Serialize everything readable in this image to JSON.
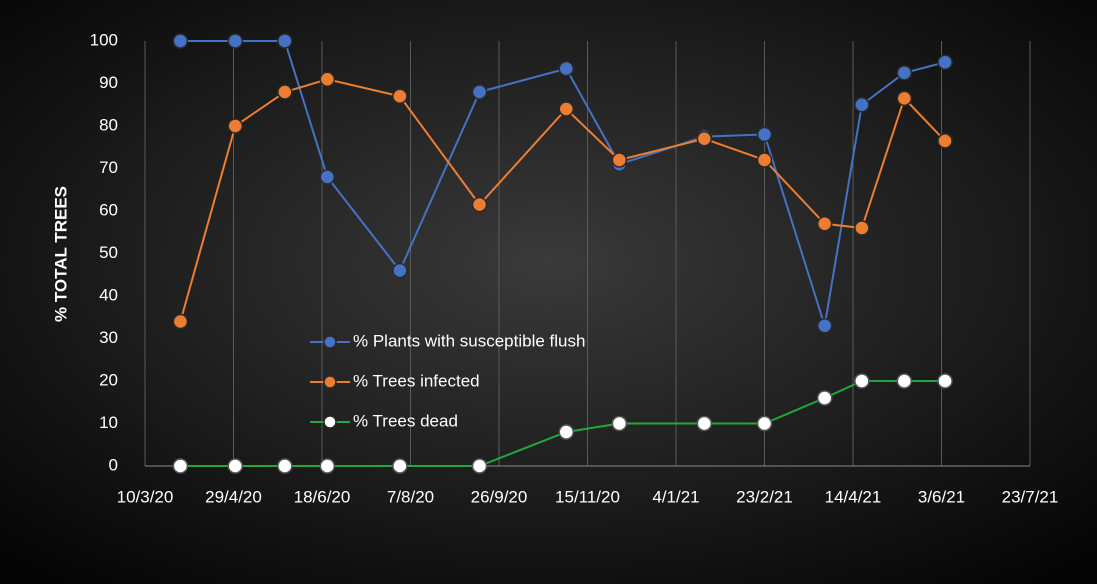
{
  "chart_data": {
    "type": "line",
    "y_label": "% TOTAL TREES",
    "x": [
      "2020-03-30",
      "2020-04-30",
      "2020-05-28",
      "2020-06-21",
      "2020-08-01",
      "2020-09-15",
      "2020-11-03",
      "2020-12-03",
      "2021-01-20",
      "2021-02-23",
      "2021-03-29",
      "2021-04-19",
      "2021-05-13",
      "2021-06-05"
    ],
    "series": [
      {
        "name": "% Plants with susceptible flush",
        "color": "#4472c4",
        "marker_color": "#4472c4",
        "values": [
          100,
          100,
          100,
          68,
          46,
          88,
          93.5,
          71,
          77.5,
          78,
          33,
          85,
          92.5,
          95
        ]
      },
      {
        "name": "% Trees infected",
        "color": "#ed7d31",
        "marker_color": "#ed7d31",
        "values": [
          34,
          80,
          88,
          91,
          87,
          61.5,
          84,
          72,
          77,
          72,
          57,
          56,
          86.5,
          76.5
        ]
      },
      {
        "name": "% Trees dead",
        "color": "#22a83a",
        "marker_color": "#ffffff",
        "values": [
          0,
          0,
          0,
          0,
          0,
          0,
          8,
          10,
          10,
          10,
          16,
          20,
          20,
          20
        ]
      }
    ],
    "xlim": [
      "2020-03-10",
      "2021-07-23"
    ],
    "xticks": [
      {
        "value": "2020-03-10",
        "label": "10/3/20"
      },
      {
        "value": "2020-04-29",
        "label": "29/4/20"
      },
      {
        "value": "2020-06-18",
        "label": "18/6/20"
      },
      {
        "value": "2020-08-07",
        "label": "7/8/20"
      },
      {
        "value": "2020-09-26",
        "label": "26/9/20"
      },
      {
        "value": "2020-11-15",
        "label": "15/11/20"
      },
      {
        "value": "2021-01-04",
        "label": "4/1/21"
      },
      {
        "value": "2021-02-23",
        "label": "23/2/21"
      },
      {
        "value": "2021-04-14",
        "label": "14/4/21"
      },
      {
        "value": "2021-06-03",
        "label": "3/6/21"
      },
      {
        "value": "2021-07-23",
        "label": "23/7/21"
      }
    ],
    "ylim": [
      0,
      100
    ],
    "yticks": [
      0,
      10,
      20,
      30,
      40,
      50,
      60,
      70,
      80,
      90,
      100
    ],
    "grid": "x"
  }
}
